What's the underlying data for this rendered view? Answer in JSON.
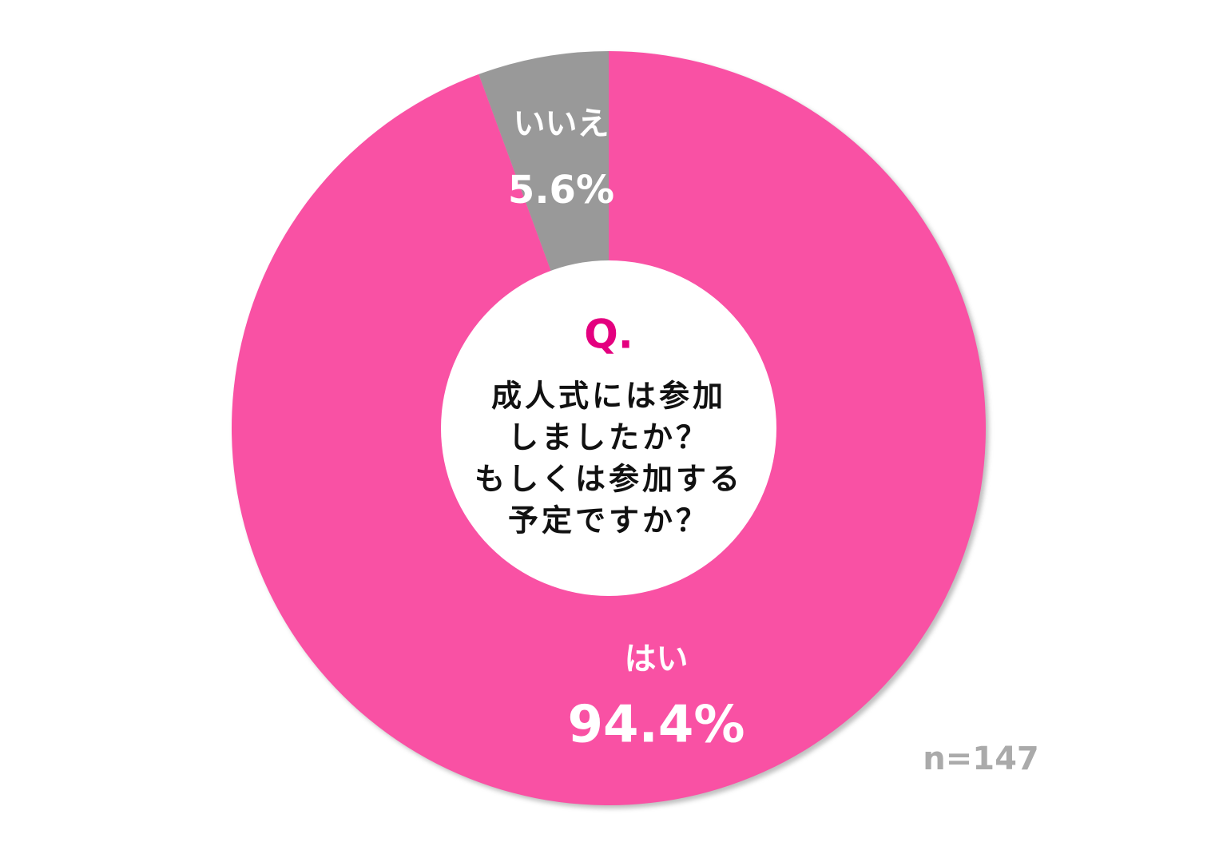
{
  "chart_data": {
    "type": "donut",
    "categories": [
      "はい",
      "いいえ"
    ],
    "values": [
      94.4,
      5.6
    ],
    "value_labels": [
      "94.4%",
      "5.6%"
    ],
    "colors": [
      "#f951a4",
      "#999999"
    ],
    "center_title": "Q.",
    "center_lines": [
      "成人式には参加",
      "しましたか？",
      "もしくは参加する",
      "予定ですか？"
    ],
    "note": "n=147"
  }
}
